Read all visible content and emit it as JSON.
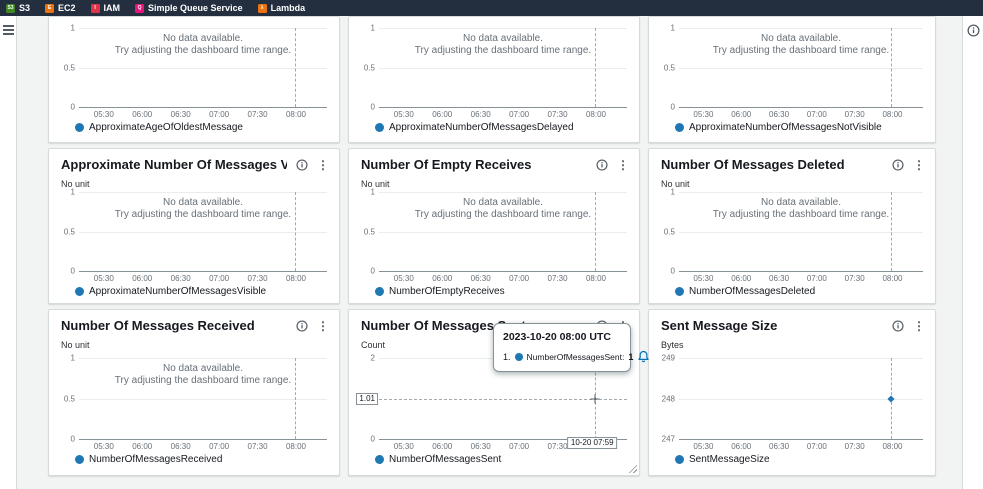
{
  "navbar": {
    "items": [
      {
        "label": "S3",
        "color": "#3F8624",
        "glyph": "S3"
      },
      {
        "label": "EC2",
        "color": "#EC7211",
        "glyph": "E"
      },
      {
        "label": "IAM",
        "color": "#DD344C",
        "glyph": "I"
      },
      {
        "label": "Simple Queue Service",
        "color": "#E7157B",
        "glyph": "Q"
      },
      {
        "label": "Lambda",
        "color": "#EC7211",
        "glyph": "λ"
      }
    ]
  },
  "axis": {
    "x_ticks": [
      "05:30",
      "06:00",
      "06:30",
      "07:00",
      "07:30",
      "08:00"
    ]
  },
  "no_data": {
    "line1": "No data available.",
    "line2": "Try adjusting the dashboard time range."
  },
  "hover": {
    "y_label": "1.01",
    "x_label": "10-20 07:59"
  },
  "tooltip": {
    "timestamp": "2023-10-20 08:00 UTC",
    "row_index": "1.",
    "series_name": "NumberOfMessagesSent:",
    "value": "1"
  },
  "series_color": "#1f77b4",
  "panels": [
    {
      "id": "approximate-age-of-oldest-message",
      "title": "",
      "unit": "",
      "show_header": false,
      "legend": "ApproximateAgeOfOldestMessage",
      "y_ticks": [
        "1",
        "0.5",
        "0"
      ],
      "variant": "nodata",
      "points": []
    },
    {
      "id": "approximate-number-of-messages-delayed",
      "title": "",
      "unit": "",
      "show_header": false,
      "legend": "ApproximateNumberOfMessagesDelayed",
      "y_ticks": [
        "1",
        "0.5",
        "0"
      ],
      "variant": "nodata",
      "points": []
    },
    {
      "id": "approximate-number-of-messages-not-visible",
      "title": "",
      "unit": "",
      "show_header": false,
      "legend": "ApproximateNumberOfMessagesNotVisible",
      "y_ticks": [
        "1",
        "0.5",
        "0"
      ],
      "variant": "nodata",
      "points": []
    },
    {
      "id": "approximate-number-of-messages-visible",
      "title": "Approximate Number Of Messages Visible",
      "unit": "No unit",
      "show_header": true,
      "legend": "ApproximateNumberOfMessagesVisible",
      "y_ticks": [
        "1",
        "0.5",
        "0"
      ],
      "variant": "nodata",
      "points": []
    },
    {
      "id": "number-of-empty-receives",
      "title": "Number Of Empty Receives",
      "unit": "No unit",
      "show_header": true,
      "legend": "NumberOfEmptyReceives",
      "y_ticks": [
        "1",
        "0.5",
        "0"
      ],
      "variant": "nodata",
      "points": []
    },
    {
      "id": "number-of-messages-deleted",
      "title": "Number Of Messages Deleted",
      "unit": "No unit",
      "show_header": true,
      "legend": "NumberOfMessagesDeleted",
      "y_ticks": [
        "1",
        "0.5",
        "0"
      ],
      "variant": "nodata",
      "points": []
    },
    {
      "id": "number-of-messages-received",
      "title": "Number Of Messages Received",
      "unit": "No unit",
      "show_header": true,
      "legend": "NumberOfMessagesReceived",
      "y_ticks": [
        "1",
        "0.5",
        "0"
      ],
      "variant": "nodata",
      "points": []
    },
    {
      "id": "number-of-messages-sent",
      "title": "Number Of Messages Sent",
      "unit": "Count",
      "show_header": true,
      "legend": "NumberOfMessagesSent",
      "y_ticks": [
        "2",
        "",
        "0"
      ],
      "variant": "sent",
      "points": [
        [
          "2023-10-20 08:00 UTC",
          1
        ]
      ]
    },
    {
      "id": "sent-message-size",
      "title": "Sent Message Size",
      "unit": "Bytes",
      "show_header": true,
      "legend": "SentMessageSize",
      "y_ticks": [
        "249",
        "248",
        "247"
      ],
      "variant": "size",
      "points": [
        [
          "2023-10-20 08:00 UTC",
          248
        ]
      ]
    }
  ],
  "chart_data": [
    {
      "type": "line",
      "series": [
        {
          "name": "ApproximateAgeOfOldestMessage",
          "points": []
        }
      ],
      "x_ticks": [
        "05:30",
        "06:00",
        "06:30",
        "07:00",
        "07:30",
        "08:00"
      ],
      "y_ticks": [
        0,
        0.5,
        1
      ]
    },
    {
      "type": "line",
      "series": [
        {
          "name": "ApproximateNumberOfMessagesDelayed",
          "points": []
        }
      ],
      "x_ticks": [
        "05:30",
        "06:00",
        "06:30",
        "07:00",
        "07:30",
        "08:00"
      ],
      "y_ticks": [
        0,
        0.5,
        1
      ]
    },
    {
      "type": "line",
      "series": [
        {
          "name": "ApproximateNumberOfMessagesNotVisible",
          "points": []
        }
      ],
      "x_ticks": [
        "05:30",
        "06:00",
        "06:30",
        "07:00",
        "07:30",
        "08:00"
      ],
      "y_ticks": [
        0,
        0.5,
        1
      ]
    },
    {
      "type": "line",
      "title": "Approximate Number Of Messages Visible",
      "ylabel": "No unit",
      "series": [
        {
          "name": "ApproximateNumberOfMessagesVisible",
          "points": []
        }
      ],
      "x_ticks": [
        "05:30",
        "06:00",
        "06:30",
        "07:00",
        "07:30",
        "08:00"
      ],
      "y_ticks": [
        0,
        0.5,
        1
      ]
    },
    {
      "type": "line",
      "title": "Number Of Empty Receives",
      "ylabel": "No unit",
      "series": [
        {
          "name": "NumberOfEmptyReceives",
          "points": []
        }
      ],
      "x_ticks": [
        "05:30",
        "06:00",
        "06:30",
        "07:00",
        "07:30",
        "08:00"
      ],
      "y_ticks": [
        0,
        0.5,
        1
      ]
    },
    {
      "type": "line",
      "title": "Number Of Messages Deleted",
      "ylabel": "No unit",
      "series": [
        {
          "name": "NumberOfMessagesDeleted",
          "points": []
        }
      ],
      "x_ticks": [
        "05:30",
        "06:00",
        "06:30",
        "07:00",
        "07:30",
        "08:00"
      ],
      "y_ticks": [
        0,
        0.5,
        1
      ]
    },
    {
      "type": "line",
      "title": "Number Of Messages Received",
      "ylabel": "No unit",
      "series": [
        {
          "name": "NumberOfMessagesReceived",
          "points": []
        }
      ],
      "x_ticks": [
        "05:30",
        "06:00",
        "06:30",
        "07:00",
        "07:30",
        "08:00"
      ],
      "y_ticks": [
        0,
        0.5,
        1
      ]
    },
    {
      "type": "line",
      "title": "Number Of Messages Sent",
      "ylabel": "Count",
      "series": [
        {
          "name": "NumberOfMessagesSent",
          "points": [
            [
              "2023-10-20 08:00 UTC",
              1
            ]
          ]
        }
      ],
      "x_ticks": [
        "05:30",
        "06:00",
        "06:30",
        "07:00",
        "07:30",
        "08:00"
      ],
      "y_ticks": [
        0,
        2
      ]
    },
    {
      "type": "line",
      "title": "Sent Message Size",
      "ylabel": "Bytes",
      "series": [
        {
          "name": "SentMessageSize",
          "points": [
            [
              "2023-10-20 08:00 UTC",
              248
            ]
          ]
        }
      ],
      "x_ticks": [
        "05:30",
        "06:00",
        "06:30",
        "07:00",
        "07:30",
        "08:00"
      ],
      "y_ticks": [
        247,
        248,
        249
      ]
    }
  ]
}
